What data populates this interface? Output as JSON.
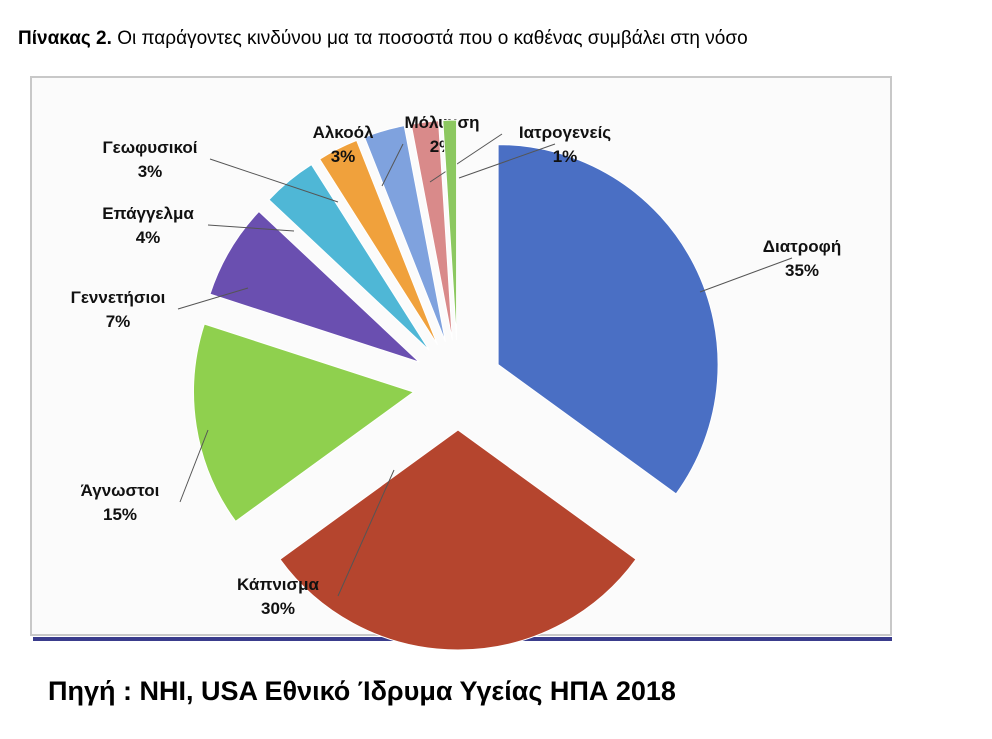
{
  "caption": {
    "prefix": "Πίνακας 2.",
    "text": "Οι παράγοντες κινδύνου μα τα ποσοστά που ο καθένας συμβάλει στη νόσο"
  },
  "source": "Πηγή : NHI, USA Εθνικό Ίδρυμα Υγείας ΗΠΑ 2018",
  "chart_data": {
    "type": "pie",
    "exploded": true,
    "slices": [
      {
        "name": "Διατροφή",
        "value": 35,
        "label": "35%",
        "color": "#4a6fc4"
      },
      {
        "name": "Κάπνισμα",
        "value": 30,
        "label": "30%",
        "color": "#b5452e"
      },
      {
        "name": "Άγνωστοι",
        "value": 15,
        "label": "15%",
        "color": "#8fd04e"
      },
      {
        "name": "Γεννετήσιοι",
        "value": 7,
        "label": "7%",
        "color": "#6a4fb0"
      },
      {
        "name": "Επάγγελμα",
        "value": 4,
        "label": "4%",
        "color": "#4fb7d6"
      },
      {
        "name": "Γεωφυσικοί",
        "value": 3,
        "label": "3%",
        "color": "#f0a13c"
      },
      {
        "name": "Αλκοόλ",
        "value": 3,
        "label": "3%",
        "color": "#7fa2de"
      },
      {
        "name": "Μόλυνση",
        "value": 2,
        "label": "2%",
        "color": "#d98a8a"
      },
      {
        "name": "Ιατρογενείς",
        "value": 1,
        "label": "1%",
        "color": "#8cc860"
      }
    ]
  }
}
